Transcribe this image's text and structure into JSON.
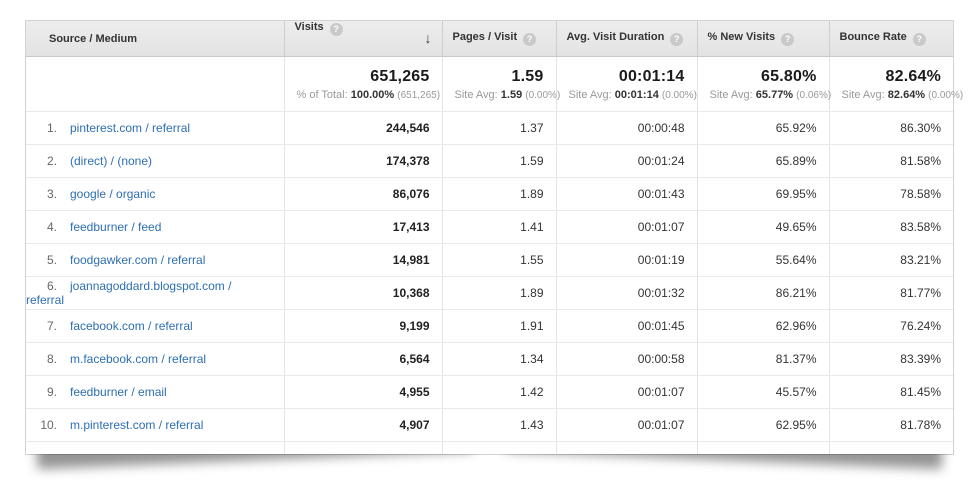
{
  "colors": {
    "link": "#2d6fb2",
    "header_bg": "#e8e8e8",
    "header_text": "#333333",
    "value_text": "#333333",
    "muted_text": "#999999"
  },
  "icons": {
    "help_glyph": "?",
    "sort_desc_glyph": "↓"
  },
  "table": {
    "columns": [
      {
        "label": "Source / Medium"
      },
      {
        "label": "Visits",
        "help": true,
        "sorted": "descending"
      },
      {
        "label": "Pages / Visit",
        "help": true
      },
      {
        "label": "Avg. Visit Duration",
        "help": true
      },
      {
        "label": "% New Visits",
        "help": true
      },
      {
        "label": "Bounce Rate",
        "help": true
      }
    ],
    "totals": {
      "visits": {
        "value": "651,265",
        "sub_label": "% of Total:",
        "sub_value": "100.00%",
        "sub_paren": "(651,265)"
      },
      "pages_per_visit": {
        "value": "1.59",
        "sub_label": "Site Avg:",
        "sub_value": "1.59",
        "sub_paren": "(0.00%)"
      },
      "avg_visit_duration": {
        "value": "00:01:14",
        "sub_label": "Site Avg:",
        "sub_value": "00:01:14",
        "sub_paren": "(0.00%)"
      },
      "pct_new_visits": {
        "value": "65.80%",
        "sub_label": "Site Avg:",
        "sub_value": "65.77%",
        "sub_paren": "(0.06%)"
      },
      "bounce_rate": {
        "value": "82.64%",
        "sub_label": "Site Avg:",
        "sub_value": "82.64%",
        "sub_paren": "(0.00%)"
      }
    },
    "rows": [
      {
        "rank": "1.",
        "source_medium": "pinterest.com / referral",
        "visits": "244,546",
        "pages_per_visit": "1.37",
        "avg_visit_duration": "00:00:48",
        "pct_new_visits": "65.92%",
        "bounce_rate": "86.30%"
      },
      {
        "rank": "2.",
        "source_medium": "(direct) / (none)",
        "visits": "174,378",
        "pages_per_visit": "1.59",
        "avg_visit_duration": "00:01:24",
        "pct_new_visits": "65.89%",
        "bounce_rate": "81.58%"
      },
      {
        "rank": "3.",
        "source_medium": "google / organic",
        "visits": "86,076",
        "pages_per_visit": "1.89",
        "avg_visit_duration": "00:01:43",
        "pct_new_visits": "69.95%",
        "bounce_rate": "78.58%"
      },
      {
        "rank": "4.",
        "source_medium": "feedburner / feed",
        "visits": "17,413",
        "pages_per_visit": "1.41",
        "avg_visit_duration": "00:01:07",
        "pct_new_visits": "49.65%",
        "bounce_rate": "83.58%"
      },
      {
        "rank": "5.",
        "source_medium": "foodgawker.com / referral",
        "visits": "14,981",
        "pages_per_visit": "1.55",
        "avg_visit_duration": "00:01:19",
        "pct_new_visits": "55.64%",
        "bounce_rate": "83.21%"
      },
      {
        "rank": "6.",
        "source_medium": "joannagoddard.blogspot.com / referral",
        "visits": "10,368",
        "pages_per_visit": "1.89",
        "avg_visit_duration": "00:01:32",
        "pct_new_visits": "86.21%",
        "bounce_rate": "81.77%"
      },
      {
        "rank": "7.",
        "source_medium": "facebook.com / referral",
        "visits": "9,199",
        "pages_per_visit": "1.91",
        "avg_visit_duration": "00:01:45",
        "pct_new_visits": "62.96%",
        "bounce_rate": "76.24%"
      },
      {
        "rank": "8.",
        "source_medium": "m.facebook.com / referral",
        "visits": "6,564",
        "pages_per_visit": "1.34",
        "avg_visit_duration": "00:00:58",
        "pct_new_visits": "81.37%",
        "bounce_rate": "83.39%"
      },
      {
        "rank": "9.",
        "source_medium": "feedburner / email",
        "visits": "4,955",
        "pages_per_visit": "1.42",
        "avg_visit_duration": "00:01:07",
        "pct_new_visits": "45.57%",
        "bounce_rate": "81.45%"
      },
      {
        "rank": "10.",
        "source_medium": "m.pinterest.com / referral",
        "visits": "4,907",
        "pages_per_visit": "1.43",
        "avg_visit_duration": "00:01:07",
        "pct_new_visits": "62.95%",
        "bounce_rate": "81.78%"
      }
    ]
  }
}
